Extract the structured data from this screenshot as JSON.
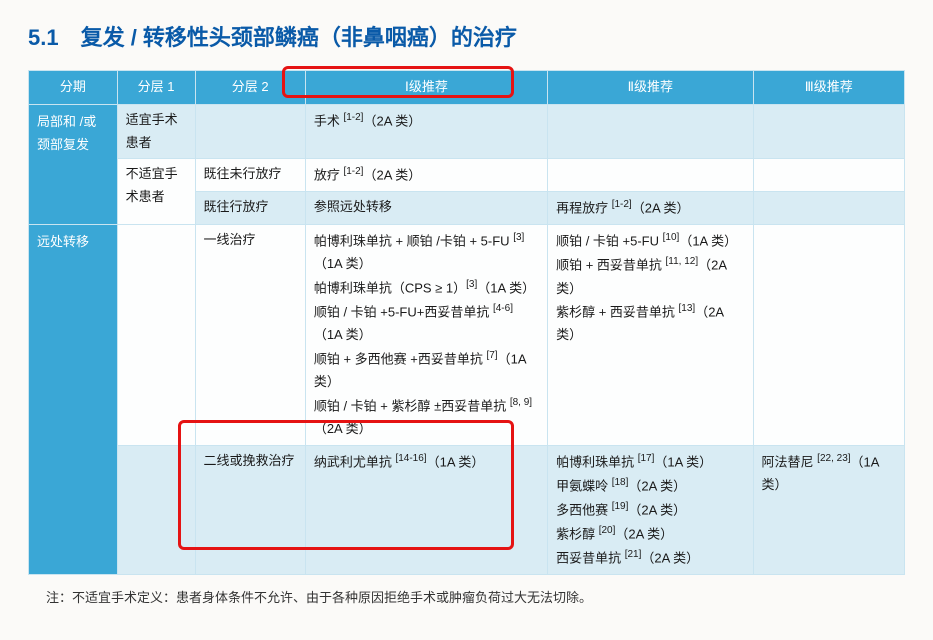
{
  "heading": "5.1　复发 / 转移性头颈部鳞癌（非鼻咽癌）的治疗",
  "headers": {
    "staging": "分期",
    "layer1": "分层 1",
    "layer2": "分层 2",
    "rec1": "Ⅰ级推荐",
    "rec2": "Ⅱ级推荐",
    "rec3": "Ⅲ级推荐"
  },
  "rows": {
    "r1": {
      "staging": "局部和 /或颈部复发",
      "layer1": "适宜手术患者",
      "layer2": "",
      "rec1": "手术 [1-2]（2A 类）",
      "rec2": "",
      "rec3": ""
    },
    "r2": {
      "layer1": "不适宜手术患者",
      "layer2": "既往未行放疗",
      "rec1": "放疗 [1-2]（2A 类）",
      "rec2": "",
      "rec3": ""
    },
    "r3": {
      "layer2": "既往行放疗",
      "rec1": "参照远处转移",
      "rec2": "再程放疗 [1-2]（2A 类）",
      "rec3": ""
    },
    "r4": {
      "staging": "远处转移",
      "layer1": "",
      "layer2": "一线治疗",
      "rec1": "帕博利珠单抗 + 顺铂 /卡铂 + 5-FU [3]（1A 类）\n帕博利珠单抗（CPS ≥ 1）[3]（1A 类）\n顺铂 / 卡铂 +5-FU+西妥昔单抗 [4-6]（1A 类）\n顺铂 + 多西他赛 +西妥昔单抗 [7]（1A 类）\n顺铂 / 卡铂 + 紫杉醇 ±西妥昔单抗 [8, 9]（2A 类）",
      "rec2": "顺铂 / 卡铂 +5-FU [10]（1A 类）\n顺铂 + 西妥昔单抗 [11, 12]（2A 类）\n紫杉醇 + 西妥昔单抗 [13]（2A 类）",
      "rec3": ""
    },
    "r5": {
      "layer1": "",
      "layer2": "二线或挽救治疗",
      "rec1": "纳武利尤单抗 [14-16]（1A 类）",
      "rec2": "帕博利珠单抗 [17]（1A 类）\n甲氨蝶呤 [18]（2A 类）\n多西他赛 [19]（2A 类）\n紫杉醇 [20]（2A 类）\n西妥昔单抗 [21]（2A 类）",
      "rec3": "阿法替尼 [22, 23]（1A 类）"
    }
  },
  "footnote": "注：不适宜手术定义：患者身体条件不允许、由于各种原因拒绝手术或肿瘤负荷过大无法切除。"
}
